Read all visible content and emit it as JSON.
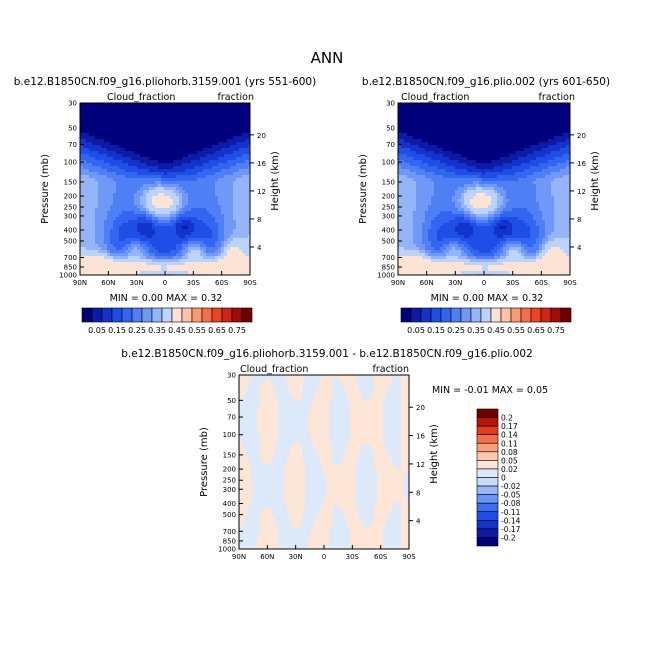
{
  "page_title": "ANN",
  "colors": {
    "seq": [
      "#00007d",
      "#0c1aa6",
      "#1432cc",
      "#1f4ee6",
      "#3366f0",
      "#4f7ff5",
      "#6f98f7",
      "#95b5f9",
      "#bcd3fb",
      "#fde3d3",
      "#fcc3a8",
      "#f99a73",
      "#f46e47",
      "#e94524",
      "#cf2411",
      "#a00d06",
      "#720000"
    ],
    "diff": [
      "#00007d",
      "#0c1aa6",
      "#1432cc",
      "#1f4ee6",
      "#3b6cf2",
      "#6a94f6",
      "#98b8f9",
      "#c7dcfc",
      "#dbe9fb",
      "#fde6d6",
      "#fcc9ae",
      "#f9a07a",
      "#f46e47",
      "#e03d1c",
      "#b81508",
      "#720000"
    ]
  },
  "chart_data": [
    {
      "id": "left",
      "type": "heatmap",
      "title": "b.e12.B1850CN.f09_g16.pliohorb.3159.001 (yrs 551-600)",
      "label_left": "Cloud_fraction",
      "label_right": "fraction",
      "ylabel": "Pressure (mb)",
      "y2label": "Height (km)",
      "x_ticks": [
        "90N",
        "60N",
        "30N",
        "0",
        "30S",
        "60S",
        "90S"
      ],
      "y_ticks": [
        "30",
        "50",
        "70",
        "100",
        "150",
        "200",
        "250",
        "300",
        "400",
        "500",
        "700",
        "850",
        "1000"
      ],
      "y_tick_values": [
        30,
        50,
        70,
        100,
        150,
        200,
        250,
        300,
        400,
        500,
        700,
        850,
        1000
      ],
      "y2_ticks": [
        "20",
        "16",
        "12",
        "8",
        "4"
      ],
      "y2_tick_values": [
        20,
        16,
        12,
        8,
        4
      ],
      "xlim": [
        90,
        -90
      ],
      "ylim": [
        1000,
        30
      ],
      "stats": "MIN =    0.00   MAX =    0.32",
      "colorbar_labels": [
        "0.05",
        "0.15",
        "0.25",
        "0.35",
        "0.45",
        "0.55",
        "0.65",
        "0.75"
      ],
      "levels": [
        0.025,
        0.05,
        0.075,
        0.1,
        0.125,
        0.15,
        0.175,
        0.2,
        0.25
      ],
      "field": "baseline"
    },
    {
      "id": "right",
      "type": "heatmap",
      "title": "b.e12.B1850CN.f09_g16.plio.002 (yrs 601-650)",
      "label_left": "Cloud_fraction",
      "label_right": "fraction",
      "ylabel": "Pressure (mb)",
      "y2label": "Height (km)",
      "x_ticks": [
        "90N",
        "60N",
        "30N",
        "0",
        "30S",
        "60S",
        "90S"
      ],
      "y_ticks": [
        "30",
        "50",
        "70",
        "100",
        "150",
        "200",
        "250",
        "300",
        "400",
        "500",
        "700",
        "850",
        "1000"
      ],
      "y_tick_values": [
        30,
        50,
        70,
        100,
        150,
        200,
        250,
        300,
        400,
        500,
        700,
        850,
        1000
      ],
      "y2_ticks": [
        "20",
        "16",
        "12",
        "8",
        "4"
      ],
      "y2_tick_values": [
        20,
        16,
        12,
        8,
        4
      ],
      "xlim": [
        90,
        -90
      ],
      "ylim": [
        1000,
        30
      ],
      "stats": "MIN =    0.00   MAX =    0.32",
      "colorbar_labels": [
        "0.05",
        "0.15",
        "0.25",
        "0.35",
        "0.45",
        "0.55",
        "0.65",
        "0.75"
      ],
      "levels": [
        0.025,
        0.05,
        0.075,
        0.1,
        0.125,
        0.15,
        0.175,
        0.2,
        0.25
      ],
      "field": "baseline"
    },
    {
      "id": "diff",
      "type": "heatmap",
      "title": "b.e12.B1850CN.f09_g16.pliohorb.3159.001 - b.e12.B1850CN.f09_g16.plio.002",
      "label_left": "Cloud_fraction",
      "label_right": "fraction",
      "ylabel": "Pressure (mb)",
      "y2label": "Height (km)",
      "x_ticks": [
        "90N",
        "60N",
        "30N",
        "0",
        "30S",
        "60S",
        "90S"
      ],
      "y_ticks": [
        "30",
        "50",
        "70",
        "100",
        "150",
        "200",
        "250",
        "300",
        "400",
        "500",
        "700",
        "850",
        "1000"
      ],
      "y_tick_values": [
        30,
        50,
        70,
        100,
        150,
        200,
        250,
        300,
        400,
        500,
        700,
        850,
        1000
      ],
      "y2_ticks": [
        "20",
        "16",
        "12",
        "8",
        "4"
      ],
      "y2_tick_values": [
        20,
        16,
        12,
        8,
        4
      ],
      "xlim": [
        90,
        -90
      ],
      "ylim": [
        1000,
        30
      ],
      "stats": "MIN =  -0.01   MAX =    0.05",
      "colorbar_labels": [
        "0.2",
        "0.17",
        "0.14",
        "0.11",
        "0.08",
        "0.05",
        "0.02",
        "0",
        "-0.02",
        "-0.05",
        "-0.08",
        "-0.11",
        "-0.14",
        "-0.17",
        "-0.2"
      ],
      "field": "difference"
    }
  ]
}
